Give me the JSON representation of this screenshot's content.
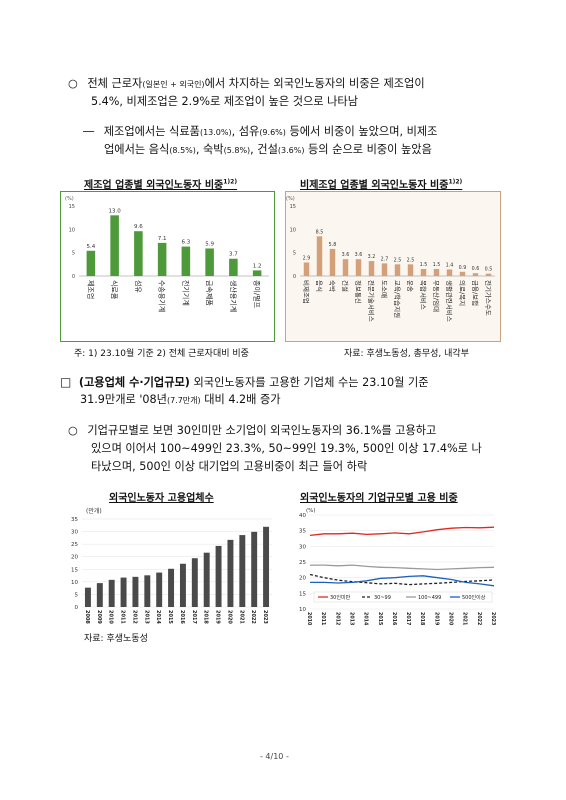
{
  "bullet1": {
    "marker": "○",
    "line1_a": "전체 근로자",
    "line1_small": "(일본인 + 외국인)",
    "line1_b": "에서 차지하는 외국인노동자의 비중은 제조업이",
    "line2": "5.4%, 비제조업은 2.9%로 제조업이 높은 것으로 나타남"
  },
  "dash1": {
    "marker": "―",
    "line1_a": "제조업에서는 식료품",
    "line1_s1": "(13.0%)",
    "line1_b": ", 섬유",
    "line1_s2": "(9.6%)",
    "line1_c": " 등에서 비중이 높았으며, 비제조",
    "line2_a": "업에서는 음식",
    "line2_s1": "(8.5%)",
    "line2_b": ", 숙박",
    "line2_s2": "(5.8%)",
    "line2_c": ", 건설",
    "line2_s3": "(3.6%)",
    "line2_d": " 등의 순으로 비중이 높았음"
  },
  "chart1_title": "제조업 업종별 외국인노동자 비중",
  "chart1_sup": "1)2)",
  "chart2_title": "비제조업 업종별 외국인노동자 비중",
  "chart2_sup": "1)2)",
  "chart1_footnote": "주: 1) 23.10월 기준   2) 전체 근로자대비 비중",
  "chart2_source": "자료: 후생노동성, 총무성, 내각부",
  "section": {
    "marker": "□",
    "bold": "(고용업체 수·기업규모)",
    "line1_rest": " 외국인노동자를 고용한 기업체 수는 23.10월 기준",
    "line2_a": "31.9만개로 '08년",
    "line2_small": "(7.7만개)",
    "line2_b": " 대비 4.2배 증가"
  },
  "bullet2": {
    "marker": "○",
    "line1": "기업규모별로 보면 30인미만 소기업이 외국인노동자의 36.1%를 고용하고",
    "line2": "있으며 이어서 100~499인 23.3%, 50~99인 19.3%, 500인 이상 17.4%로 나",
    "line3": "타났으며, 500인 이상 대기업의 고용비중이 최근 들어 하락"
  },
  "chart3_title": "외국인노동자 고용업체수",
  "chart4_title": "외국인노동자의 기업규모별 고용 비중",
  "chart3_source": "자료: 후생노동성",
  "page_number": "- 4/10 -",
  "chart_data": [
    {
      "type": "bar",
      "unit_label": "(%)",
      "categories": [
        "제조업",
        "식료품",
        "섬유",
        "수송용기계",
        "전기기계",
        "금속제품",
        "생산용기계",
        "종이/펄프"
      ],
      "values": [
        5.4,
        13.0,
        9.6,
        7.1,
        6.3,
        5.9,
        3.7,
        1.2
      ],
      "value_labels": [
        "5.4",
        "13.0",
        "9.6",
        "7.1",
        "6.3",
        "5.9",
        "3.7",
        "1.2"
      ],
      "yticks": [
        "0",
        "5",
        "10",
        "15"
      ],
      "ylim": [
        0,
        15
      ],
      "color": "#4e9a3a"
    },
    {
      "type": "bar",
      "unit_label": "(%)",
      "categories": [
        "비제조업",
        "음식",
        "숙박",
        "건설",
        "정보통신",
        "전문기술서비스",
        "도소매",
        "교육/학습지원",
        "운송",
        "복합서비스",
        "부동산/임대",
        "생활관련서비스",
        "의료/복지",
        "금융/보험",
        "전기가스수도"
      ],
      "values": [
        2.9,
        8.5,
        5.8,
        3.6,
        3.6,
        3.2,
        2.7,
        2.5,
        2.5,
        1.5,
        1.5,
        1.4,
        0.9,
        0.6,
        0.5
      ],
      "value_labels": [
        "2.9",
        "8.5",
        "5.8",
        "3.6",
        "3.6",
        "3.2",
        "2.7",
        "2.5",
        "2.5",
        "1.5",
        "1.5",
        "1.4",
        "0.9",
        "0.6",
        "0.5"
      ],
      "yticks": [
        "0",
        "5",
        "10",
        "15"
      ],
      "ylim": [
        0,
        15
      ],
      "color": "#d4a07a"
    },
    {
      "type": "bar",
      "unit_label": "(만개)",
      "categories": [
        "2008",
        "2009",
        "2010",
        "2011",
        "2012",
        "2013",
        "2014",
        "2015",
        "2016",
        "2017",
        "2018",
        "2019",
        "2020",
        "2021",
        "2022",
        "2023"
      ],
      "values": [
        7.7,
        9.5,
        10.8,
        11.7,
        12.0,
        12.6,
        13.7,
        15.2,
        17.2,
        19.4,
        21.6,
        24.3,
        26.7,
        28.6,
        29.9,
        31.9
      ],
      "yticks": [
        "0",
        "5",
        "10",
        "15",
        "20",
        "25",
        "30",
        "35"
      ],
      "ylim": [
        0,
        35
      ],
      "color": "#4a4a4a"
    },
    {
      "type": "line",
      "unit_label": "(%)",
      "x": [
        "2010",
        "2011",
        "2012",
        "2013",
        "2014",
        "2015",
        "2016",
        "2017",
        "2018",
        "2019",
        "2020",
        "2021",
        "2022",
        "2023"
      ],
      "yticks": [
        "10",
        "15",
        "20",
        "25",
        "30",
        "35",
        "40"
      ],
      "ylim": [
        10,
        40
      ],
      "series": [
        {
          "name": "30인미만",
          "color": "#e0281e",
          "dash": "",
          "values": [
            33.5,
            34.0,
            34.0,
            34.2,
            33.8,
            34.0,
            34.3,
            34.0,
            34.6,
            35.3,
            35.8,
            36.0,
            35.9,
            36.1
          ]
        },
        {
          "name": "30~99",
          "color": "#222222",
          "dash": "3,2",
          "values": [
            21.0,
            20.0,
            19.2,
            18.7,
            18.4,
            18.0,
            18.2,
            17.8,
            18.0,
            18.2,
            18.5,
            18.8,
            19.0,
            19.3
          ]
        },
        {
          "name": "100~499",
          "color": "#9a9a9a",
          "dash": "",
          "values": [
            24.0,
            24.0,
            23.8,
            24.0,
            23.6,
            23.3,
            23.2,
            23.0,
            22.8,
            22.6,
            22.8,
            23.0,
            23.2,
            23.3
          ]
        },
        {
          "name": "500인이상",
          "color": "#1f5fbf",
          "dash": "",
          "values": [
            18.5,
            18.5,
            18.3,
            18.5,
            19.0,
            19.8,
            20.0,
            20.4,
            20.6,
            20.0,
            19.4,
            18.5,
            18.0,
            17.4
          ]
        }
      ]
    }
  ]
}
